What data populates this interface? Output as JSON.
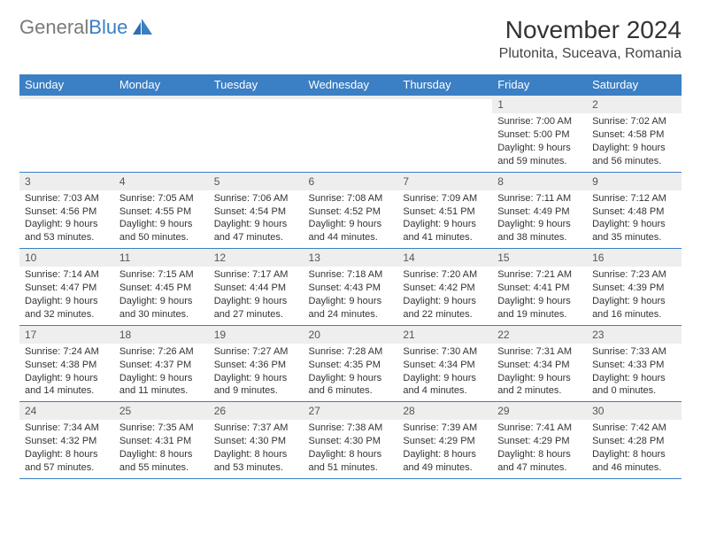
{
  "logo": {
    "word1": "General",
    "word2": "Blue",
    "color_gray": "#7a7a7a",
    "color_blue": "#3b7fc4"
  },
  "header": {
    "month_title": "November 2024",
    "location": "Plutonita, Suceava, Romania"
  },
  "calendar": {
    "type": "table",
    "header_bg": "#3b7fc4",
    "header_fg": "#ffffff",
    "daynum_bg": "#eeeeee",
    "border_color": "#3b7fc4",
    "text_color": "#333333",
    "font_size_body": 11,
    "font_size_header": 13,
    "columns": [
      "Sunday",
      "Monday",
      "Tuesday",
      "Wednesday",
      "Thursday",
      "Friday",
      "Saturday"
    ],
    "weeks": [
      [
        {
          "day": "",
          "sunrise": "",
          "sunset": "",
          "daylight": ""
        },
        {
          "day": "",
          "sunrise": "",
          "sunset": "",
          "daylight": ""
        },
        {
          "day": "",
          "sunrise": "",
          "sunset": "",
          "daylight": ""
        },
        {
          "day": "",
          "sunrise": "",
          "sunset": "",
          "daylight": ""
        },
        {
          "day": "",
          "sunrise": "",
          "sunset": "",
          "daylight": ""
        },
        {
          "day": "1",
          "sunrise": "Sunrise: 7:00 AM",
          "sunset": "Sunset: 5:00 PM",
          "daylight": "Daylight: 9 hours and 59 minutes."
        },
        {
          "day": "2",
          "sunrise": "Sunrise: 7:02 AM",
          "sunset": "Sunset: 4:58 PM",
          "daylight": "Daylight: 9 hours and 56 minutes."
        }
      ],
      [
        {
          "day": "3",
          "sunrise": "Sunrise: 7:03 AM",
          "sunset": "Sunset: 4:56 PM",
          "daylight": "Daylight: 9 hours and 53 minutes."
        },
        {
          "day": "4",
          "sunrise": "Sunrise: 7:05 AM",
          "sunset": "Sunset: 4:55 PM",
          "daylight": "Daylight: 9 hours and 50 minutes."
        },
        {
          "day": "5",
          "sunrise": "Sunrise: 7:06 AM",
          "sunset": "Sunset: 4:54 PM",
          "daylight": "Daylight: 9 hours and 47 minutes."
        },
        {
          "day": "6",
          "sunrise": "Sunrise: 7:08 AM",
          "sunset": "Sunset: 4:52 PM",
          "daylight": "Daylight: 9 hours and 44 minutes."
        },
        {
          "day": "7",
          "sunrise": "Sunrise: 7:09 AM",
          "sunset": "Sunset: 4:51 PM",
          "daylight": "Daylight: 9 hours and 41 minutes."
        },
        {
          "day": "8",
          "sunrise": "Sunrise: 7:11 AM",
          "sunset": "Sunset: 4:49 PM",
          "daylight": "Daylight: 9 hours and 38 minutes."
        },
        {
          "day": "9",
          "sunrise": "Sunrise: 7:12 AM",
          "sunset": "Sunset: 4:48 PM",
          "daylight": "Daylight: 9 hours and 35 minutes."
        }
      ],
      [
        {
          "day": "10",
          "sunrise": "Sunrise: 7:14 AM",
          "sunset": "Sunset: 4:47 PM",
          "daylight": "Daylight: 9 hours and 32 minutes."
        },
        {
          "day": "11",
          "sunrise": "Sunrise: 7:15 AM",
          "sunset": "Sunset: 4:45 PM",
          "daylight": "Daylight: 9 hours and 30 minutes."
        },
        {
          "day": "12",
          "sunrise": "Sunrise: 7:17 AM",
          "sunset": "Sunset: 4:44 PM",
          "daylight": "Daylight: 9 hours and 27 minutes."
        },
        {
          "day": "13",
          "sunrise": "Sunrise: 7:18 AM",
          "sunset": "Sunset: 4:43 PM",
          "daylight": "Daylight: 9 hours and 24 minutes."
        },
        {
          "day": "14",
          "sunrise": "Sunrise: 7:20 AM",
          "sunset": "Sunset: 4:42 PM",
          "daylight": "Daylight: 9 hours and 22 minutes."
        },
        {
          "day": "15",
          "sunrise": "Sunrise: 7:21 AM",
          "sunset": "Sunset: 4:41 PM",
          "daylight": "Daylight: 9 hours and 19 minutes."
        },
        {
          "day": "16",
          "sunrise": "Sunrise: 7:23 AM",
          "sunset": "Sunset: 4:39 PM",
          "daylight": "Daylight: 9 hours and 16 minutes."
        }
      ],
      [
        {
          "day": "17",
          "sunrise": "Sunrise: 7:24 AM",
          "sunset": "Sunset: 4:38 PM",
          "daylight": "Daylight: 9 hours and 14 minutes."
        },
        {
          "day": "18",
          "sunrise": "Sunrise: 7:26 AM",
          "sunset": "Sunset: 4:37 PM",
          "daylight": "Daylight: 9 hours and 11 minutes."
        },
        {
          "day": "19",
          "sunrise": "Sunrise: 7:27 AM",
          "sunset": "Sunset: 4:36 PM",
          "daylight": "Daylight: 9 hours and 9 minutes."
        },
        {
          "day": "20",
          "sunrise": "Sunrise: 7:28 AM",
          "sunset": "Sunset: 4:35 PM",
          "daylight": "Daylight: 9 hours and 6 minutes."
        },
        {
          "day": "21",
          "sunrise": "Sunrise: 7:30 AM",
          "sunset": "Sunset: 4:34 PM",
          "daylight": "Daylight: 9 hours and 4 minutes."
        },
        {
          "day": "22",
          "sunrise": "Sunrise: 7:31 AM",
          "sunset": "Sunset: 4:34 PM",
          "daylight": "Daylight: 9 hours and 2 minutes."
        },
        {
          "day": "23",
          "sunrise": "Sunrise: 7:33 AM",
          "sunset": "Sunset: 4:33 PM",
          "daylight": "Daylight: 9 hours and 0 minutes."
        }
      ],
      [
        {
          "day": "24",
          "sunrise": "Sunrise: 7:34 AM",
          "sunset": "Sunset: 4:32 PM",
          "daylight": "Daylight: 8 hours and 57 minutes."
        },
        {
          "day": "25",
          "sunrise": "Sunrise: 7:35 AM",
          "sunset": "Sunset: 4:31 PM",
          "daylight": "Daylight: 8 hours and 55 minutes."
        },
        {
          "day": "26",
          "sunrise": "Sunrise: 7:37 AM",
          "sunset": "Sunset: 4:30 PM",
          "daylight": "Daylight: 8 hours and 53 minutes."
        },
        {
          "day": "27",
          "sunrise": "Sunrise: 7:38 AM",
          "sunset": "Sunset: 4:30 PM",
          "daylight": "Daylight: 8 hours and 51 minutes."
        },
        {
          "day": "28",
          "sunrise": "Sunrise: 7:39 AM",
          "sunset": "Sunset: 4:29 PM",
          "daylight": "Daylight: 8 hours and 49 minutes."
        },
        {
          "day": "29",
          "sunrise": "Sunrise: 7:41 AM",
          "sunset": "Sunset: 4:29 PM",
          "daylight": "Daylight: 8 hours and 47 minutes."
        },
        {
          "day": "30",
          "sunrise": "Sunrise: 7:42 AM",
          "sunset": "Sunset: 4:28 PM",
          "daylight": "Daylight: 8 hours and 46 minutes."
        }
      ]
    ]
  }
}
